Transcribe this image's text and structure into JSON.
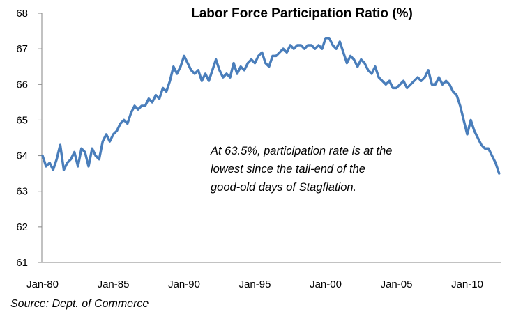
{
  "chart_data": {
    "type": "line",
    "title": "Labor Force Participation Ratio (%)",
    "xlabel": "",
    "ylabel": "",
    "ylim": [
      61,
      68
    ],
    "yticks": [
      "61",
      "62",
      "63",
      "64",
      "65",
      "66",
      "67",
      "68"
    ],
    "xtick_labels": [
      "Jan-80",
      "Jan-85",
      "Jan-90",
      "Jan-95",
      "Jan-00",
      "Jan-05",
      "Jan-10"
    ],
    "xtick_dates": [
      "1980-01",
      "1985-01",
      "1990-01",
      "1995-01",
      "2000-01",
      "2005-01",
      "2010-01"
    ],
    "grid": false,
    "legend": "none",
    "line_color": "#4a7ebb",
    "annotation": [
      "At 63.5%, participation rate is at the",
      "lowest since the tail-end of the",
      "good-old days of Stagflation."
    ],
    "source": "Source: Dept. of Commerce",
    "series": [
      {
        "points": [
          [
            "1980-01",
            64.0
          ],
          [
            "1980-04",
            63.7
          ],
          [
            "1980-07",
            63.8
          ],
          [
            "1980-10",
            63.6
          ],
          [
            "1981-01",
            63.9
          ],
          [
            "1981-04",
            64.3
          ],
          [
            "1981-07",
            63.6
          ],
          [
            "1981-10",
            63.8
          ],
          [
            "1982-01",
            63.9
          ],
          [
            "1982-04",
            64.1
          ],
          [
            "1982-07",
            63.7
          ],
          [
            "1982-10",
            64.2
          ],
          [
            "1983-01",
            64.1
          ],
          [
            "1983-04",
            63.7
          ],
          [
            "1983-07",
            64.2
          ],
          [
            "1983-10",
            64.0
          ],
          [
            "1984-01",
            63.9
          ],
          [
            "1984-04",
            64.4
          ],
          [
            "1984-07",
            64.6
          ],
          [
            "1984-10",
            64.4
          ],
          [
            "1985-01",
            64.6
          ],
          [
            "1985-04",
            64.7
          ],
          [
            "1985-07",
            64.9
          ],
          [
            "1985-10",
            65.0
          ],
          [
            "1986-01",
            64.9
          ],
          [
            "1986-04",
            65.2
          ],
          [
            "1986-07",
            65.4
          ],
          [
            "1986-10",
            65.3
          ],
          [
            "1987-01",
            65.4
          ],
          [
            "1987-04",
            65.4
          ],
          [
            "1987-07",
            65.6
          ],
          [
            "1987-10",
            65.5
          ],
          [
            "1988-01",
            65.7
          ],
          [
            "1988-04",
            65.6
          ],
          [
            "1988-07",
            65.9
          ],
          [
            "1988-10",
            65.8
          ],
          [
            "1989-01",
            66.1
          ],
          [
            "1989-04",
            66.5
          ],
          [
            "1989-07",
            66.3
          ],
          [
            "1989-10",
            66.5
          ],
          [
            "1990-01",
            66.8
          ],
          [
            "1990-04",
            66.6
          ],
          [
            "1990-07",
            66.4
          ],
          [
            "1990-10",
            66.3
          ],
          [
            "1991-01",
            66.4
          ],
          [
            "1991-04",
            66.1
          ],
          [
            "1991-07",
            66.3
          ],
          [
            "1991-10",
            66.1
          ],
          [
            "1992-01",
            66.4
          ],
          [
            "1992-04",
            66.7
          ],
          [
            "1992-07",
            66.4
          ],
          [
            "1992-10",
            66.2
          ],
          [
            "1993-01",
            66.3
          ],
          [
            "1993-04",
            66.2
          ],
          [
            "1993-07",
            66.6
          ],
          [
            "1993-10",
            66.3
          ],
          [
            "1994-01",
            66.5
          ],
          [
            "1994-04",
            66.4
          ],
          [
            "1994-07",
            66.6
          ],
          [
            "1994-10",
            66.7
          ],
          [
            "1995-01",
            66.6
          ],
          [
            "1995-04",
            66.8
          ],
          [
            "1995-07",
            66.9
          ],
          [
            "1995-10",
            66.6
          ],
          [
            "1996-01",
            66.5
          ],
          [
            "1996-04",
            66.8
          ],
          [
            "1996-07",
            66.8
          ],
          [
            "1996-10",
            66.9
          ],
          [
            "1997-01",
            67.0
          ],
          [
            "1997-04",
            66.9
          ],
          [
            "1997-07",
            67.1
          ],
          [
            "1997-10",
            67.0
          ],
          [
            "1998-01",
            67.1
          ],
          [
            "1998-04",
            67.1
          ],
          [
            "1998-07",
            67.0
          ],
          [
            "1998-10",
            67.1
          ],
          [
            "1999-01",
            67.1
          ],
          [
            "1999-04",
            67.0
          ],
          [
            "1999-07",
            67.1
          ],
          [
            "1999-10",
            67.0
          ],
          [
            "2000-01",
            67.3
          ],
          [
            "2000-04",
            67.3
          ],
          [
            "2000-07",
            67.1
          ],
          [
            "2000-10",
            67.0
          ],
          [
            "2001-01",
            67.2
          ],
          [
            "2001-04",
            66.9
          ],
          [
            "2001-07",
            66.6
          ],
          [
            "2001-10",
            66.8
          ],
          [
            "2002-01",
            66.7
          ],
          [
            "2002-04",
            66.5
          ],
          [
            "2002-07",
            66.7
          ],
          [
            "2002-10",
            66.6
          ],
          [
            "2003-01",
            66.4
          ],
          [
            "2003-04",
            66.3
          ],
          [
            "2003-07",
            66.5
          ],
          [
            "2003-10",
            66.2
          ],
          [
            "2004-01",
            66.1
          ],
          [
            "2004-04",
            66.0
          ],
          [
            "2004-07",
            66.1
          ],
          [
            "2004-10",
            65.9
          ],
          [
            "2005-01",
            65.9
          ],
          [
            "2005-04",
            66.0
          ],
          [
            "2005-07",
            66.1
          ],
          [
            "2005-10",
            65.9
          ],
          [
            "2006-01",
            66.0
          ],
          [
            "2006-04",
            66.1
          ],
          [
            "2006-07",
            66.2
          ],
          [
            "2006-10",
            66.1
          ],
          [
            "2007-01",
            66.2
          ],
          [
            "2007-04",
            66.4
          ],
          [
            "2007-07",
            66.0
          ],
          [
            "2007-10",
            66.0
          ],
          [
            "2008-01",
            66.2
          ],
          [
            "2008-04",
            66.0
          ],
          [
            "2008-07",
            66.1
          ],
          [
            "2008-10",
            66.0
          ],
          [
            "2009-01",
            65.8
          ],
          [
            "2009-04",
            65.7
          ],
          [
            "2009-07",
            65.4
          ],
          [
            "2009-10",
            65.0
          ],
          [
            "2010-01",
            64.6
          ],
          [
            "2010-04",
            65.0
          ],
          [
            "2010-07",
            64.7
          ],
          [
            "2010-10",
            64.5
          ],
          [
            "2011-01",
            64.3
          ],
          [
            "2011-04",
            64.2
          ],
          [
            "2011-07",
            64.2
          ],
          [
            "2011-10",
            64.0
          ],
          [
            "2012-01",
            63.8
          ],
          [
            "2012-04",
            63.5
          ]
        ]
      }
    ]
  }
}
